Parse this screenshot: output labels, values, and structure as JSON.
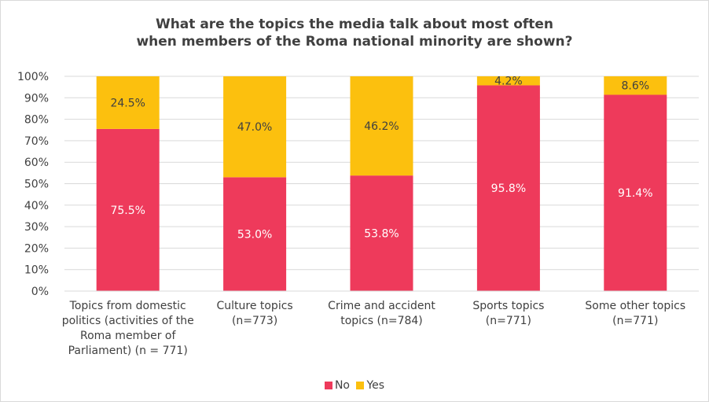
{
  "chart_data": {
    "type": "bar",
    "stacked": true,
    "title_lines": [
      "What are the topics the media talk about most often",
      "when members of the Roma national minority are shown?"
    ],
    "categories": [
      [
        "Topics from domestic",
        "politics (activities of the",
        "Roma member of",
        "Parliament) (n = 771)"
      ],
      [
        "Culture topics",
        "(n=773)"
      ],
      [
        "Crime and accident",
        "topics (n=784)"
      ],
      [
        "Sports topics",
        "(n=771)"
      ],
      [
        "Some other topics",
        "(n=771)"
      ]
    ],
    "series": [
      {
        "name": "No",
        "color": "#ee3a5b",
        "label_color": "#ffffff",
        "values": [
          75.5,
          53.0,
          53.8,
          95.8,
          91.4
        ],
        "labels": [
          "75.5%",
          "53.0%",
          "53.8%",
          "95.8%",
          "91.4%"
        ]
      },
      {
        "name": "Yes",
        "color": "#fcc00e",
        "label_color": "#404040",
        "values": [
          24.5,
          47.0,
          46.2,
          4.2,
          8.6
        ],
        "labels": [
          "24.5%",
          "47.0%",
          "46.2%",
          "4.2%",
          "8.6%"
        ]
      }
    ],
    "ylim": [
      0,
      100
    ],
    "yticks": [
      "0%",
      "10%",
      "20%",
      "30%",
      "40%",
      "50%",
      "60%",
      "70%",
      "80%",
      "90%",
      "100%"
    ],
    "grid": true,
    "legend_position": "bottom"
  }
}
